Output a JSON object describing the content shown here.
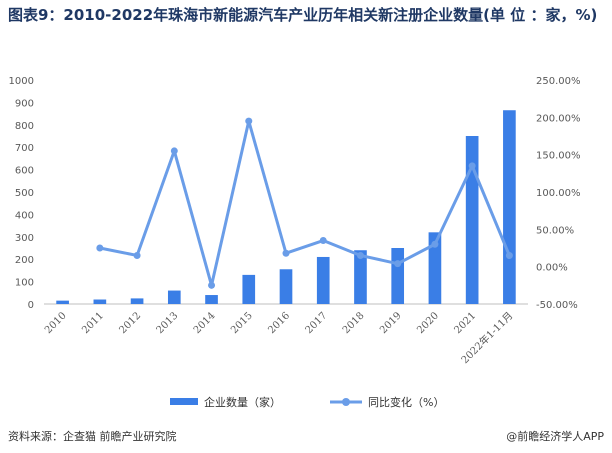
{
  "title": "图表9：2010-2022年珠海市新能源汽车产业历年相关新注册企业数量(单 位 ：家，%)",
  "source": "资料来源：企查猫 前瞻产业研究院",
  "brand": "@前瞻经济学人APP",
  "colors": {
    "bar": "#3a7ee6",
    "line": "#6a9de8",
    "title": "#1f3864"
  },
  "chart_data": {
    "type": "bar",
    "categories": [
      "2010",
      "2011",
      "2012",
      "2013",
      "2014",
      "2015",
      "2016",
      "2017",
      "2018",
      "2019",
      "2020",
      "2021",
      "2022年1-11月"
    ],
    "series": [
      {
        "name": "企业数量（家）",
        "type": "bar",
        "axis": "left",
        "values": [
          15,
          20,
          25,
          60,
          40,
          130,
          155,
          210,
          240,
          250,
          320,
          750,
          865
        ]
      },
      {
        "name": "同比变化（%）",
        "type": "line",
        "axis": "right",
        "values": [
          null,
          25,
          15,
          155,
          -25,
          195,
          18,
          35,
          15,
          4,
          30,
          135,
          15
        ]
      }
    ],
    "y_left": {
      "min": 0,
      "max": 1000,
      "ticks": [
        "0",
        "100",
        "200",
        "300",
        "400",
        "500",
        "600",
        "700",
        "800",
        "900",
        "1000"
      ]
    },
    "y_right": {
      "min": -50,
      "max": 250,
      "ticks": [
        "-50.00%",
        "0.00%",
        "50.00%",
        "100.00%",
        "150.00%",
        "200.00%",
        "250.00%"
      ]
    },
    "legend_position": "bottom",
    "grid": false
  }
}
